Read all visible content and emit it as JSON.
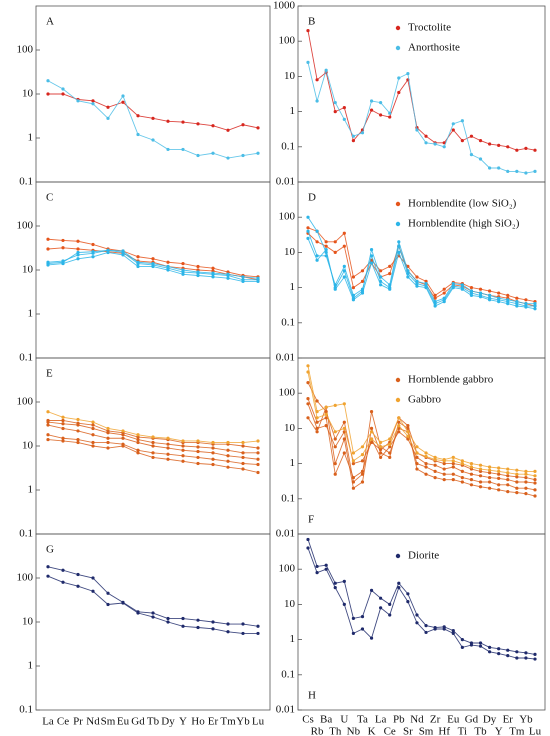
{
  "chart_data": [
    {
      "type": "line",
      "panel_label": "A",
      "label_position": "top",
      "log": true,
      "ylim": [
        0.1,
        1000
      ],
      "yticks": [
        0.1,
        1,
        10,
        100
      ],
      "series": [
        {
          "color": "#d7261e",
          "lines": [
            [
              10,
              10,
              7.5,
              7,
              5,
              6.5,
              3.2,
              2.8,
              2.4,
              2.3,
              2.1,
              1.9,
              1.5,
              2,
              1.7
            ]
          ]
        },
        {
          "color": "#4bbde6",
          "lines": [
            [
              20,
              13,
              7,
              6,
              2.8,
              9,
              1.2,
              0.9,
              0.55,
              0.55,
              0.4,
              0.45,
              0.35,
              0.4,
              0.45
            ]
          ]
        }
      ]
    },
    {
      "type": "line",
      "panel_label": "B",
      "label_position": "top",
      "log": true,
      "ylim": [
        0.01,
        1000
      ],
      "yticks": [
        0.01,
        0.1,
        1,
        10,
        100,
        1000
      ],
      "legend": "upper right",
      "series": [
        {
          "name": "Troctolite",
          "color": "#d7261e",
          "lines": [
            [
              200,
              8,
              13,
              1,
              1.3,
              0.15,
              0.3,
              1.1,
              0.8,
              0.7,
              3.5,
              8,
              0.35,
              0.2,
              0.13,
              0.13,
              0.3,
              0.15,
              0.2,
              0.15,
              0.12,
              0.11,
              0.1,
              0.08,
              0.09,
              0.08
            ]
          ]
        },
        {
          "name": "Anorthosite",
          "color": "#4bbde6",
          "lines": [
            [
              25,
              2,
              15,
              1.8,
              0.6,
              0.2,
              0.25,
              2,
              1.8,
              0.9,
              9,
              12,
              0.3,
              0.13,
              0.12,
              0.1,
              0.45,
              0.55,
              0.06,
              0.045,
              0.025,
              0.025,
              0.02,
              0.02,
              0.018,
              0.02
            ]
          ]
        }
      ]
    },
    {
      "type": "line",
      "panel_label": "C",
      "label_position": "top",
      "log": true,
      "ylim": [
        0.1,
        1000
      ],
      "yticks": [
        0.1,
        1,
        10,
        100
      ],
      "series": [
        {
          "color": "#e5541b",
          "lines": [
            [
              50,
              47,
              45,
              38,
              30,
              27,
              20,
              18,
              15,
              14,
              12,
              11,
              9,
              7.5,
              7
            ],
            [
              30,
              32,
              30,
              28,
              26,
              24,
              16,
              15,
              12,
              11,
              10,
              9.5,
              8,
              7,
              6
            ]
          ]
        },
        {
          "color": "#2cb5e8",
          "lines": [
            [
              15,
              16,
              22,
              24,
              28,
              25,
              14,
              13,
              11,
              9,
              8.5,
              8,
              7.5,
              6,
              6
            ],
            [
              13,
              14,
              18,
              20,
              25,
              22,
              12,
              12,
              10,
              8,
              7.5,
              7,
              6.5,
              5.5,
              5.5
            ],
            [
              14,
              15,
              25,
              26,
              28,
              27,
              15,
              14,
              12,
              10,
              9,
              8.5,
              8,
              7,
              6.5
            ]
          ]
        }
      ]
    },
    {
      "type": "line",
      "panel_label": "D",
      "label_position": "top",
      "log": true,
      "ylim": [
        0.01,
        1000
      ],
      "yticks": [
        0.01,
        0.1,
        1,
        10,
        100
      ],
      "legend": "upper right",
      "series": [
        {
          "name": "Hornblendite (low SiO₂)",
          "color": "#e5541b",
          "lines": [
            [
              50,
              40,
              20,
              20,
              35,
              2,
              3,
              6,
              3,
              4,
              8,
              4,
              2,
              1.5,
              0.6,
              0.9,
              1.4,
              1.3,
              1,
              0.9,
              0.8,
              0.7,
              0.6,
              0.5,
              0.45,
              0.4
            ],
            [
              35,
              20,
              15,
              10,
              15,
              1,
              1.5,
              5,
              2,
              2.5,
              15,
              3,
              1.5,
              1.2,
              0.5,
              0.7,
              1.2,
              1.1,
              0.8,
              0.7,
              0.6,
              0.55,
              0.5,
              0.4,
              0.35,
              0.3
            ]
          ]
        },
        {
          "name": "Hornblendite (high SiO₂)",
          "color": "#2cb5e8",
          "lines": [
            [
              100,
              40,
              10,
              1,
              3,
              0.5,
              0.8,
              12,
              2,
              1.2,
              20,
              3,
              1.5,
              1.3,
              0.4,
              0.5,
              1.3,
              1.2,
              0.8,
              0.7,
              0.6,
              0.5,
              0.45,
              0.4,
              0.35,
              0.35
            ],
            [
              40,
              8,
              8,
              1.2,
              4,
              0.6,
              0.9,
              8,
              1.5,
              1,
              15,
              2.5,
              1.3,
              1.1,
              0.35,
              0.45,
              1.1,
              1,
              0.7,
              0.6,
              0.5,
              0.45,
              0.4,
              0.35,
              0.3,
              0.3
            ],
            [
              25,
              6,
              12,
              0.9,
              2,
              0.45,
              0.7,
              5,
              1.2,
              0.9,
              10,
              2,
              1.1,
              1,
              0.3,
              0.4,
              1,
              0.9,
              0.6,
              0.55,
              0.45,
              0.4,
              0.35,
              0.3,
              0.28,
              0.25
            ]
          ]
        }
      ]
    },
    {
      "type": "line",
      "panel_label": "E",
      "label_position": "top",
      "log": true,
      "ylim": [
        0.1,
        1000
      ],
      "yticks": [
        0.1,
        1,
        10,
        100
      ],
      "series": [
        {
          "color": "#d9601c",
          "lines": [
            [
              38,
              38,
              33,
              30,
              22,
              20,
              16,
              15,
              14,
              12,
              12,
              11,
              11,
              10,
              9
            ],
            [
              35,
              32,
              30,
              25,
              20,
              18,
              14,
              12,
              11,
              10,
              9.5,
              9,
              8,
              7,
              7
            ],
            [
              30,
              25,
              22,
              18,
              15,
              15,
              12,
              10,
              9,
              8,
              7.5,
              7,
              6,
              5.5,
              5
            ],
            [
              18,
              15,
              14,
              12,
              12,
              11,
              8,
              7,
              6.5,
              6,
              5.5,
              5,
              4.5,
              4,
              3.8
            ],
            [
              14,
              13,
              12,
              10,
              9,
              10,
              7,
              5.5,
              5,
              4.5,
              4,
              3.8,
              3.3,
              3,
              2.5
            ]
          ]
        },
        {
          "color": "#f0a330",
          "lines": [
            [
              60,
              45,
              40,
              35,
              25,
              22,
              18,
              16,
              15,
              13,
              13,
              12,
              12,
              12,
              13
            ]
          ]
        }
      ]
    },
    {
      "type": "line",
      "panel_label": "F",
      "label_position": "bottom",
      "log": true,
      "ylim": [
        0.01,
        1000
      ],
      "yticks": [
        0.01,
        0.1,
        1,
        10,
        100
      ],
      "legend": "upper right",
      "series": [
        {
          "name": "Hornblende gabbro",
          "color": "#d9601c",
          "lines": [
            [
              50,
              10,
              12,
              3,
              8,
              0.3,
              0.5,
              30,
              3,
              2,
              10,
              8,
              1,
              0.8,
              0.6,
              0.5,
              0.5,
              0.4,
              0.35,
              0.3,
              0.3,
              0.25,
              0.25,
              0.2,
              0.2,
              0.18
            ],
            [
              20,
              8,
              40,
              1,
              5,
              0.2,
              0.3,
              10,
              2,
              1.5,
              15,
              10,
              0.7,
              0.5,
              0.4,
              0.35,
              0.35,
              0.3,
              0.25,
              0.22,
              0.2,
              0.18,
              0.16,
              0.15,
              0.14,
              0.12
            ],
            [
              70,
              15,
              20,
              0.5,
              2,
              0.4,
              0.6,
              5,
              1.5,
              3,
              8,
              5,
              1.5,
              1,
              0.9,
              0.7,
              0.8,
              0.6,
              0.5,
              0.45,
              0.4,
              0.38,
              0.35,
              0.3,
              0.3,
              0.28
            ],
            [
              200,
              60,
              30,
              5,
              15,
              1,
              1.2,
              4,
              2.5,
              4,
              20,
              12,
              2,
              1.5,
              1.2,
              1,
              1,
              0.9,
              0.7,
              0.6,
              0.55,
              0.5,
              0.45,
              0.42,
              0.4,
              0.35
            ]
          ]
        },
        {
          "name": "Gabbro",
          "color": "#f0a330",
          "lines": [
            [
              600,
              30,
              40,
              45,
              50,
              2,
              3,
              8,
              4,
              5,
              20,
              8,
              3,
              2,
              1.5,
              1.3,
              1.5,
              1.2,
              1,
              0.9,
              0.8,
              0.75,
              0.7,
              0.65,
              0.6,
              0.6
            ],
            [
              400,
              20,
              25,
              8,
              10,
              1.2,
              1.8,
              5,
              3,
              3.5,
              12,
              6,
              2,
              1.6,
              1.3,
              1.2,
              1.2,
              1,
              0.8,
              0.7,
              0.65,
              0.6,
              0.55,
              0.5,
              0.5,
              0.45
            ]
          ]
        }
      ]
    },
    {
      "type": "line",
      "panel_label": "G",
      "label_position": "top",
      "log": true,
      "ylim": [
        0.1,
        1000
      ],
      "yticks": [
        0.1,
        1,
        10,
        100
      ],
      "categories": [
        "La",
        "Ce",
        "Pr",
        "Nd",
        "Sm",
        "Eu",
        "Gd",
        "Tb",
        "Dy",
        "Y",
        "Ho",
        "Er",
        "Tm",
        "Yb",
        "Lu"
      ],
      "series": [
        {
          "color": "#1f2a6b",
          "lines": [
            [
              180,
              150,
              120,
              100,
              45,
              28,
              17,
              16,
              12,
              12,
              11,
              10,
              9,
              9,
              8
            ],
            [
              110,
              80,
              65,
              50,
              25,
              27,
              16,
              13,
              10,
              8,
              7.5,
              7,
              6,
              5.5,
              5.5
            ]
          ]
        }
      ]
    },
    {
      "type": "line",
      "panel_label": "H",
      "label_position": "bottom",
      "log": true,
      "ylim": [
        0.01,
        1000
      ],
      "yticks": [
        0.01,
        0.1,
        1,
        10,
        100
      ],
      "legend": "upper right",
      "categories": [
        "Cs",
        "Rb",
        "Ba",
        "Th",
        "U",
        "Nb",
        "Ta",
        "K",
        "La",
        "Ce",
        "Pb",
        "Sr",
        "Nd",
        "Sm",
        "Zr",
        "Hf",
        "Eu",
        "Ti",
        "Gd",
        "Tb",
        "Dy",
        "Y",
        "Er",
        "Tm",
        "Yb",
        "Lu"
      ],
      "series": [
        {
          "name": "Diorite",
          "color": "#1f2a6b",
          "lines": [
            [
              700,
              120,
              130,
              40,
              45,
              4,
              4.5,
              25,
              15,
              10,
              40,
              20,
              5,
              2.5,
              2.2,
              2.3,
              1.8,
              1,
              0.8,
              0.8,
              0.6,
              0.55,
              0.5,
              0.45,
              0.42,
              0.38
            ],
            [
              400,
              80,
              100,
              30,
              10,
              1.5,
              2,
              1.1,
              8,
              5,
              30,
              12,
              3,
              1.6,
              2,
              2,
              1.5,
              0.6,
              0.7,
              0.65,
              0.45,
              0.4,
              0.35,
              0.3,
              0.3,
              0.28
            ]
          ]
        }
      ]
    }
  ]
}
